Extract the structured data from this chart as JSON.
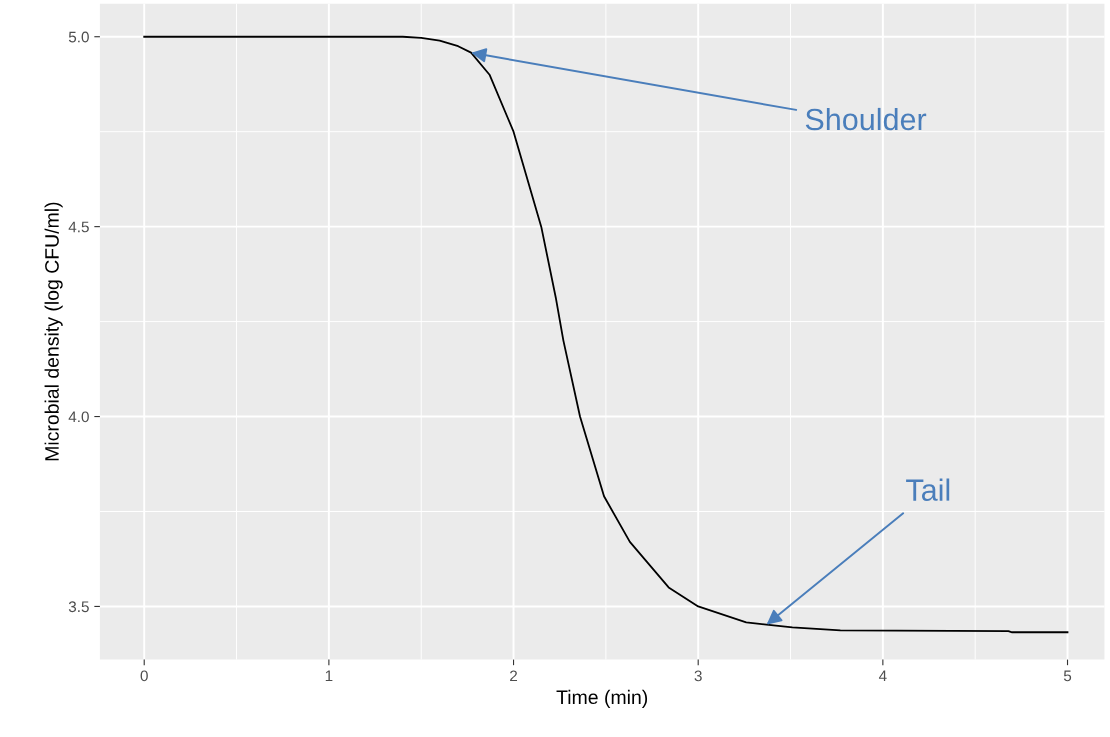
{
  "chart_data": {
    "type": "line",
    "xlabel": "Time (min)",
    "ylabel": "Microbial density (log CFU/ml)",
    "x": [
      0,
      1.4,
      1.5,
      1.6,
      1.7,
      1.77,
      1.87,
      2.0,
      2.15,
      2.23,
      2.27,
      2.36,
      2.49,
      2.63,
      2.84,
      3.0,
      3.26,
      3.37,
      3.51,
      3.77,
      4.68,
      4.7,
      5.0
    ],
    "series": [
      {
        "color": "#000000",
        "values": [
          5.0,
          5.0,
          4.997,
          4.99,
          4.975,
          4.958,
          4.9,
          4.75,
          4.5,
          4.31,
          4.2,
          4.0,
          3.79,
          3.67,
          3.55,
          3.5,
          3.458,
          3.452,
          3.445,
          3.437,
          3.435,
          3.432,
          3.432
        ]
      }
    ],
    "xlim": [
      -0.24,
      5.2
    ],
    "ylim": [
      3.36,
      5.087
    ],
    "xticks": [
      0,
      1,
      2,
      3,
      4,
      5
    ],
    "yticks": [
      {
        "value": 3.5,
        "label": "3.5"
      },
      {
        "value": 4.0,
        "label": "4.0"
      },
      {
        "value": 4.5,
        "label": "4.5"
      },
      {
        "value": 5.0,
        "label": "5.0"
      }
    ],
    "grid": true,
    "marker": "none",
    "line_style": "solid",
    "annotations": [
      {
        "text": "Shoulder",
        "x": 1.77,
        "y": 4.958
      },
      {
        "text": "Tail",
        "x": 3.37,
        "y": 3.452
      }
    ]
  }
}
